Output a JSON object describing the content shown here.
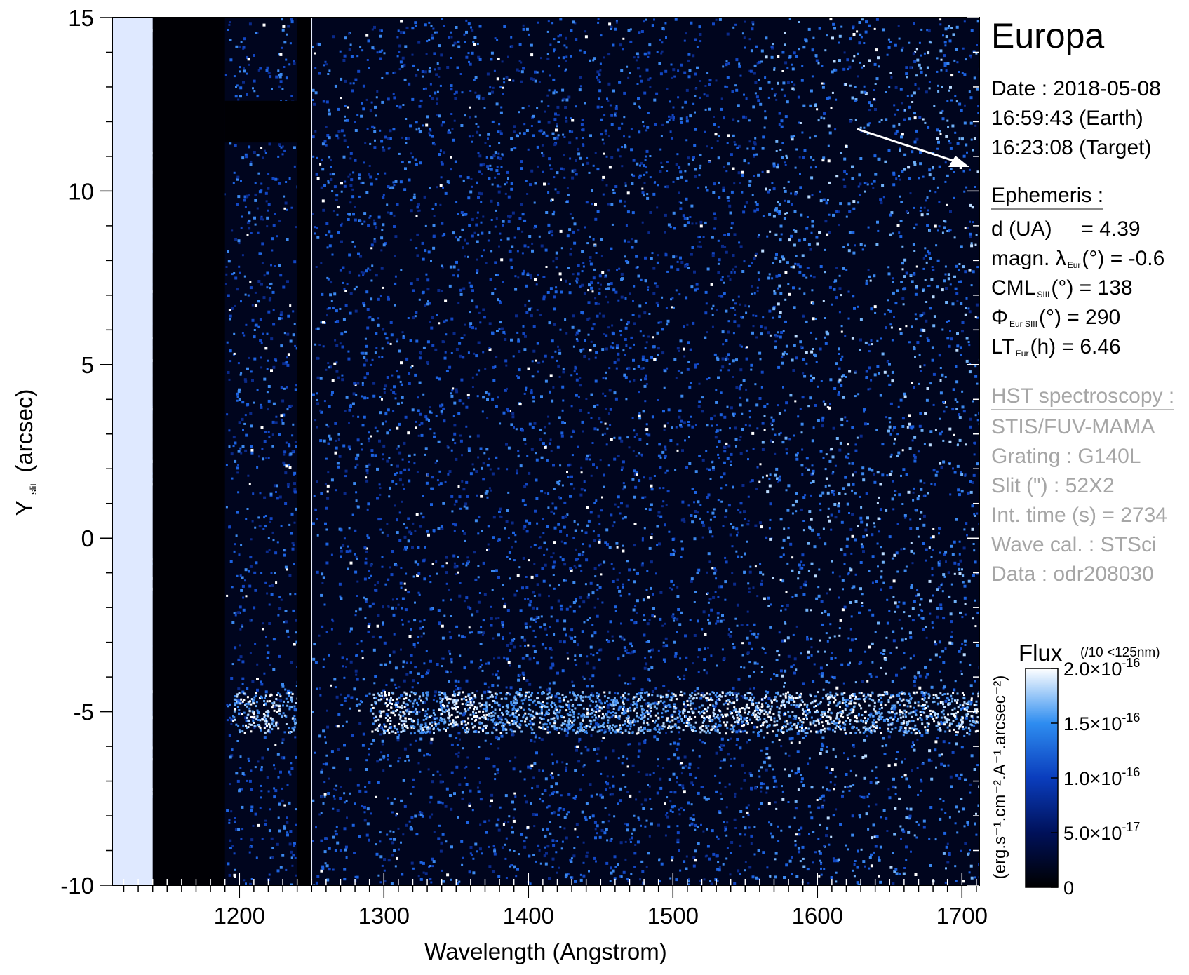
{
  "chart_data": {
    "type": "heatmap",
    "title": "Europa",
    "xlabel": "Wavelength (Angstrom)",
    "ylabel_main": "Y",
    "ylabel_sub": "slit",
    "ylabel_unit": "(arcsec)",
    "xlim": [
      1112,
      1712
    ],
    "ylim": [
      -10,
      15
    ],
    "x_ticks": [
      "1200",
      "1300",
      "1400",
      "1500",
      "1600",
      "1700"
    ],
    "y_ticks": [
      "-10",
      "-5",
      "0",
      "5",
      "10",
      "15"
    ],
    "colorbar": {
      "title": "Flux",
      "note": "(/10 <125nm)",
      "unit": "(erg.s⁻¹.cm⁻².A⁻¹.arcsec⁻²)",
      "range": [
        0,
        2e-16
      ],
      "ticks": [
        {
          "value": 0,
          "mant": "0",
          "exp": ""
        },
        {
          "value": 5e-17,
          "mant": "5.0×10",
          "exp": "-17"
        },
        {
          "value": 1e-16,
          "mant": "1.0×10",
          "exp": "-16"
        },
        {
          "value": 1.5e-16,
          "mant": "1.5×10",
          "exp": "-16"
        },
        {
          "value": 2e-16,
          "mant": "2.0×10",
          "exp": "-16"
        }
      ],
      "colors": [
        "#000000",
        "#00115a",
        "#0a3dbd",
        "#2e8df0",
        "#ffffff"
      ]
    },
    "features": {
      "emission_band_y": -5,
      "emission_knots_x": [
        1215,
        1304,
        1356
      ],
      "bright_edge_x": [
        1112,
        1140
      ],
      "dark_column_x": [
        1140,
        1190
      ],
      "bright_line_x": 1250
    }
  },
  "info": {
    "date_line": "Date : 2018-05-08",
    "earth_time": "16:59:43 (Earth)",
    "target_time": "16:23:08 (Target)",
    "ephemeris_header": "Ephemeris :",
    "d_label": "d (UA)",
    "d_value": "= 4.39",
    "magn_label": "magn. λ",
    "magn_sub": "Eur",
    "magn_rest": "(°)  = -0.6",
    "cml_label": "CML",
    "cml_sub": "SIII",
    "cml_rest": "(°) = 138",
    "phi_label": "Φ",
    "phi_sub": "Eur SIII",
    "phi_rest": "(°) = 290",
    "lt_label": "LT",
    "lt_sub": "Eur",
    "lt_rest": "(h) = 6.46",
    "hst_header": "HST spectroscopy :",
    "instrument": "STIS/FUV-MAMA",
    "grating": "Grating : G140L",
    "slit": "Slit (\") : 52X2",
    "int_time": "Int. time (s) = 2734",
    "wave_cal": "Wave cal. : STSci",
    "data_id": "Data : odr208030"
  }
}
